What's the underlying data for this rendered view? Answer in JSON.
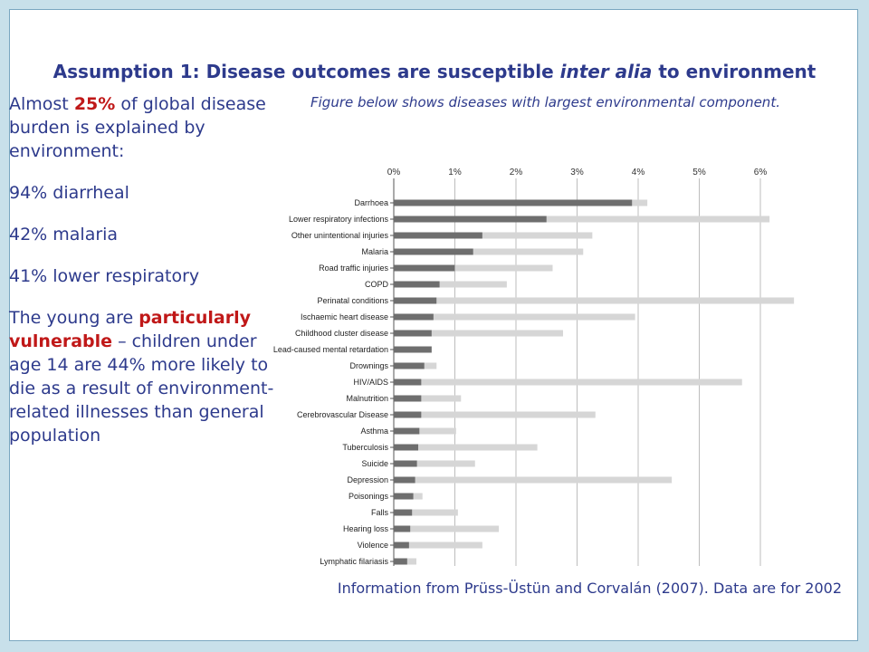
{
  "slide": {
    "title_main": "Assumption 1: Disease outcomes are susceptible ",
    "title_italic": "inter alia",
    "title_end": " to environment",
    "left": {
      "p1_a": "Almost ",
      "p1_b": "25%",
      "p1_c": " of global disease burden is explained by environment:",
      "p2": "94% diarrheal",
      "p3": "42% malaria",
      "p4": "41% lower respiratory",
      "p5_a": "The young are ",
      "p5_b": "particularly vulnerable",
      "p5_c": " – children under age 14 are 44% more likely to die as a result of environment-related illnesses than general population"
    },
    "caption": "Figure below shows diseases with largest environmental component.",
    "footer": "Information from Prüss-Üstün and Corvalán (2007).  Data are for 2002"
  },
  "colors": {
    "title": "#2d3a8c",
    "highlight": "#c01818",
    "bar_dark": "#6e6e6e",
    "bar_light": "#d6d6d6"
  },
  "chart_data": {
    "type": "bar",
    "orientation": "horizontal",
    "stacked": true,
    "xticks": [
      "0%",
      "1%",
      "2%",
      "3%",
      "4%",
      "5%",
      "6%"
    ],
    "xlim": [
      0,
      6.6
    ],
    "grid": true,
    "categories": [
      "Darrhoea",
      "Lower respiratory infections",
      "Other unintentional injuries",
      "Malaria",
      "Road traffic injuries",
      "COPD",
      "Perinatal conditions",
      "Ischaemic heart disease",
      "Childhood cluster disease",
      "Lead-caused mental retardation",
      "Drownings",
      "HIV/AIDS",
      "Malnutrition",
      "Cerebrovascular Disease",
      "Asthma",
      "Tuberculosis",
      "Suicide",
      "Depression",
      "Poisonings",
      "Falls",
      "Hearing loss",
      "Violence",
      "Lymphatic filariasis"
    ],
    "series": [
      {
        "values": [
          3.9,
          2.5,
          1.45,
          1.3,
          1.0,
          0.75,
          0.7,
          0.65,
          0.62,
          0.62,
          0.5,
          0.45,
          0.45,
          0.45,
          0.42,
          0.4,
          0.38,
          0.35,
          0.32,
          0.3,
          0.27,
          0.25,
          0.22
        ]
      },
      {
        "values": [
          0.25,
          3.65,
          1.8,
          1.8,
          1.6,
          1.1,
          5.85,
          3.3,
          2.15,
          0.0,
          0.2,
          5.25,
          0.65,
          2.85,
          0.6,
          1.95,
          0.95,
          4.2,
          0.15,
          0.75,
          1.45,
          1.2,
          0.15
        ]
      }
    ]
  }
}
